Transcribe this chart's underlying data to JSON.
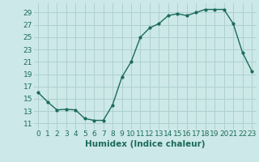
{
  "x": [
    0,
    1,
    2,
    3,
    4,
    5,
    6,
    7,
    8,
    9,
    10,
    11,
    12,
    13,
    14,
    15,
    16,
    17,
    18,
    19,
    20,
    21,
    22,
    23
  ],
  "y": [
    16,
    14.5,
    13.2,
    13.3,
    13.2,
    11.8,
    11.5,
    11.5,
    14.0,
    18.5,
    21.0,
    25.0,
    26.5,
    27.2,
    28.5,
    28.8,
    28.5,
    29.0,
    29.5,
    29.5,
    29.5,
    27.2,
    22.5,
    19.5
  ],
  "line_color": "#1a6b5a",
  "marker": "o",
  "marker_size": 2,
  "bg_color": "#cde8e8",
  "grid_color": "#aed0d0",
  "xlabel": "Humidex (Indice chaleur)",
  "xlim": [
    -0.5,
    23.5
  ],
  "ylim": [
    10,
    30.5
  ],
  "yticks": [
    11,
    13,
    15,
    17,
    19,
    21,
    23,
    25,
    27,
    29
  ],
  "xticks": [
    0,
    1,
    2,
    3,
    4,
    5,
    6,
    7,
    8,
    9,
    10,
    11,
    12,
    13,
    14,
    15,
    16,
    17,
    18,
    19,
    20,
    21,
    22,
    23
  ],
  "xlabel_fontsize": 7.5,
  "tick_fontsize": 6.5,
  "linewidth": 1.0
}
